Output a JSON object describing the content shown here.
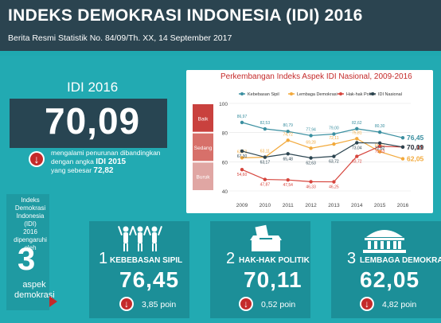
{
  "header": {
    "title": "INDEKS DEMOKRASI INDONESIA (IDI) 2016",
    "subtitle": "Berita Resmi Statistik No. 84/09/Th. XX, 14 September 2017"
  },
  "summary": {
    "label": "IDI 2016",
    "value": "70,09",
    "desc_line1": "mengalami penurunan dibandingkan",
    "desc_line2": "dengan angka",
    "desc_bold1": "IDI 2015",
    "desc_line3": "yang sebesar",
    "desc_bold2": "72,82"
  },
  "aspek": {
    "line1": "Indeks Demokrasi",
    "line2": "Indonesia (IDI)",
    "line3": "2016",
    "line4": "dipengaruhi oleh",
    "count": "3",
    "word1": "aspek",
    "word2": "demokrasi"
  },
  "cards": [
    {
      "num": "1",
      "title": "KEBEBASAN SIPIL",
      "value": "76,45",
      "change": "3,85 poin",
      "icon": "people-raising-hands-icon"
    },
    {
      "num": "2",
      "title": "HAK-HAK POLITIK",
      "value": "70,11",
      "change": "0,52 poin",
      "icon": "ballot-box-icon"
    },
    {
      "num": "3",
      "title": "LEMBAGA DEMOKRASI",
      "value": "62,05",
      "change": "4,82 poin",
      "icon": "parliament-building-icon"
    }
  ],
  "chart_data": {
    "type": "line",
    "title": "Perkembangan Indeks Aspek IDI Nasional, 2009-2016",
    "x": [
      "2009",
      "2010",
      "2011",
      "2012",
      "2013",
      "2014",
      "2015",
      "2016"
    ],
    "ylim": [
      40,
      100
    ],
    "yticks": [
      "40",
      "60",
      "80",
      "100"
    ],
    "bands": [
      {
        "label": "Baik",
        "from": 80,
        "to": 100,
        "color": "#c9413e"
      },
      {
        "label": "Sedang",
        "from": 60,
        "to": 80,
        "color": "#d7706a"
      },
      {
        "label": "Buruk",
        "from": 40,
        "to": 60,
        "color": "#e0a6a3"
      }
    ],
    "series": [
      {
        "name": "Kebebasan Sipil",
        "color": "#3a8fa0",
        "values": [
          86.97,
          82.53,
          80.79,
          77.94,
          79.0,
          82.62,
          80.3,
          76.45
        ],
        "labels": [
          "86,97",
          "82,53",
          "80,79",
          "77,94",
          "79,00",
          "82,62",
          "80,30",
          "76,45"
        ]
      },
      {
        "name": "Lembaga Demokrasi",
        "color": "#f2a93b",
        "values": [
          62.72,
          63.11,
          74.72,
          69.28,
          72.11,
          75.81,
          66.87,
          62.05
        ],
        "labels": [
          "62,72",
          "63,11",
          "74,72",
          "69,28",
          "72,11",
          "75,81",
          "66,87",
          "62,05"
        ]
      },
      {
        "name": "Hak-hak Politik",
        "color": "#d6453d",
        "values": [
          54.6,
          47.87,
          47.54,
          46.33,
          46.25,
          63.72,
          70.63,
          70.11
        ],
        "labels": [
          "54,60",
          "47,87",
          "47,54",
          "46,33",
          "46,25",
          "63,72",
          "70,63",
          "70,11"
        ]
      },
      {
        "name": "IDI Nasional",
        "color": "#2b4450",
        "values": [
          67.3,
          63.17,
          65.48,
          62.63,
          63.72,
          73.04,
          72.82,
          70.09
        ],
        "labels": [
          "67,30",
          "63,17",
          "65,48",
          "62,63",
          "63,72",
          "73,04",
          "72,82",
          "70,09"
        ]
      }
    ]
  }
}
